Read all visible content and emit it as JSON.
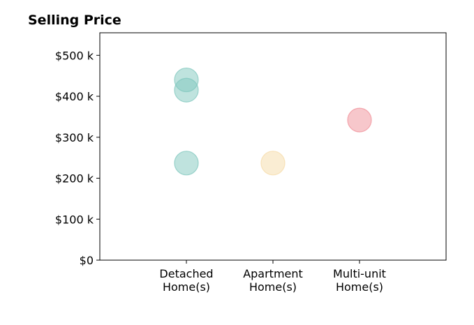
{
  "chart_data": {
    "type": "scatter",
    "title": "Selling Price",
    "xlabel": "",
    "ylabel": "",
    "categories": [
      "Detached\nHome(s)",
      "Apartment\nHome(s)",
      "Multi-unit\nHome(s)"
    ],
    "xlim": [
      -1,
      3
    ],
    "ylim": [
      0,
      555000
    ],
    "y_ticks": [
      0,
      100000,
      200000,
      300000,
      400000,
      500000
    ],
    "y_tick_labels": [
      "$0",
      "$100 k",
      "$200 k",
      "$300 k",
      "$400 k",
      "$500 k"
    ],
    "grid": false,
    "legend": "none",
    "points": [
      {
        "category": "Detached\nHome(s)",
        "value": 440000,
        "color": "#7fc7bd"
      },
      {
        "category": "Detached\nHome(s)",
        "value": 415000,
        "color": "#7fc7bd"
      },
      {
        "category": "Detached\nHome(s)",
        "value": 237000,
        "color": "#7fc7bd"
      },
      {
        "category": "Apartment\nHome(s)",
        "value": 237000,
        "color": "#f5dba8"
      },
      {
        "category": "Multi-unit\nHome(s)",
        "value": 342000,
        "color": "#f08f98"
      }
    ]
  }
}
